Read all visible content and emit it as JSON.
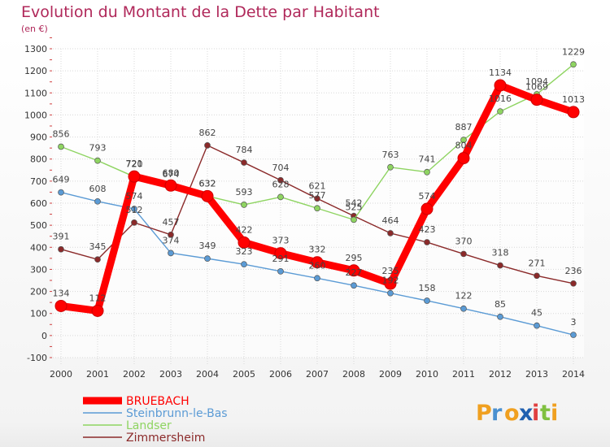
{
  "chart_data": {
    "type": "line",
    "title": "Evolution du Montant de la Dette par Habitant",
    "subtitle": "(en €)",
    "xlabel": "",
    "ylabel": "",
    "x": [
      "2000",
      "2001",
      "2002",
      "2003",
      "2004",
      "2005",
      "2006",
      "2007",
      "2008",
      "2009",
      "2010",
      "2011",
      "2012",
      "2013",
      "2014"
    ],
    "ylim": [
      -100,
      1300
    ],
    "yticks": [
      "-100",
      "0",
      "100",
      "200",
      "300",
      "400",
      "500",
      "600",
      "700",
      "800",
      "900",
      "1000",
      "1100",
      "1200",
      "1300"
    ],
    "grid": true,
    "legend_position": "bottom-left",
    "series": [
      {
        "name": "Steinbrunn-le-Bas",
        "color": "#5b9bd5",
        "values": [
          649,
          608,
          574,
          374,
          349,
          323,
          291,
          260,
          227,
          192,
          158,
          122,
          85,
          45,
          3
        ],
        "labels": [
          "649",
          "608",
          "574",
          "374",
          "349",
          "323",
          "291",
          "260",
          "227",
          "192",
          "158",
          "122",
          "85",
          "45",
          "3"
        ]
      },
      {
        "name": "Zimmersheim",
        "color": "#8b2a2a",
        "values": [
          391,
          345,
          512,
          457,
          862,
          784,
          704,
          621,
          542,
          464,
          423,
          370,
          318,
          271,
          236
        ],
        "labels": [
          "391",
          "345",
          "512",
          "457",
          "862",
          "784",
          "704",
          "621",
          "542",
          "464",
          "423",
          "370",
          "318",
          "271",
          "236"
        ]
      },
      {
        "name": "Landser",
        "color": "#8ed461",
        "values": [
          856,
          793,
          720,
          674,
          632,
          593,
          628,
          577,
          525,
          763,
          741,
          887,
          1016,
          1094,
          1229
        ],
        "labels": [
          "856",
          "793",
          "720",
          "674",
          "632",
          "593",
          "628",
          "577",
          "525",
          "763",
          "741",
          "887",
          "1016",
          "1094",
          "1229"
        ]
      },
      {
        "name": "BRUEBACH",
        "color": "#ff0000",
        "values": [
          134,
          112,
          721,
          680,
          632,
          422,
          373,
          332,
          295,
          235,
          574,
          804,
          1134,
          1069,
          1013
        ],
        "labels": [
          "134",
          "112",
          "721",
          "680",
          "632",
          "422",
          "373",
          "332",
          "295",
          "235",
          "574",
          "804",
          "1134",
          "1069",
          "1013"
        ]
      }
    ],
    "legend": [
      "BRUEBACH",
      "Steinbrunn-le-Bas",
      "Landser",
      "Zimmersheim"
    ]
  },
  "legend_colors": {
    "BRUEBACH": "#ff0000",
    "Steinbrunn-le-Bas": "#5b9bd5",
    "Landser": "#8ed461",
    "Zimmersheim": "#8b2a2a"
  },
  "logo": {
    "letters": [
      "P",
      "r",
      "o",
      "x",
      "i",
      "t",
      "i"
    ],
    "colors": [
      "#f0a020",
      "#4a90d0",
      "#f0a020",
      "#2060b0",
      "#e04040",
      "#80c040",
      "#f0a020"
    ]
  }
}
